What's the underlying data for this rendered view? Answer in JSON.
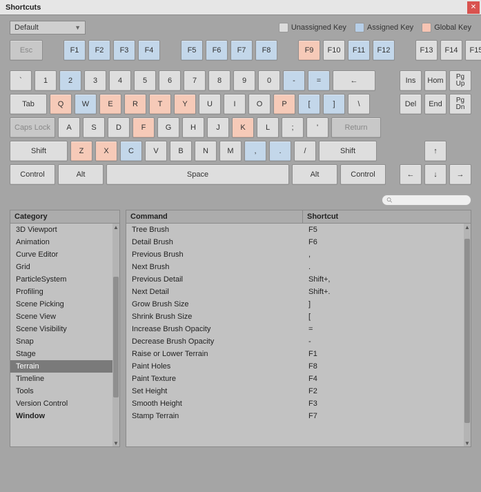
{
  "window": {
    "title": "Shortcuts"
  },
  "profile": {
    "selected": "Default"
  },
  "legend": {
    "unassigned": {
      "label": "Unassigned Key",
      "color": "#dcdcdc"
    },
    "assigned": {
      "label": "Assigned Key",
      "color": "#b7cfe8"
    },
    "global": {
      "label": "Global Key",
      "color": "#f7c4b3"
    }
  },
  "colors": {
    "bg": "#a5a5a5",
    "key_default": "#dedede",
    "key_assigned": "#c3d7ea",
    "key_global": "#f6cab8",
    "key_inactive": "#c8c8c8",
    "panel": "#c2c2c2",
    "header": "#acacac",
    "selected_row": "#7a7a7a"
  },
  "keyboard": {
    "row0": {
      "esc": {
        "label": "Esc",
        "state": "inactive"
      },
      "f_left": [
        {
          "label": "F1",
          "state": "assigned"
        },
        {
          "label": "F2",
          "state": "assigned"
        },
        {
          "label": "F3",
          "state": "assigned"
        },
        {
          "label": "F4",
          "state": "assigned"
        }
      ],
      "f_mid": [
        {
          "label": "F5",
          "state": "assigned"
        },
        {
          "label": "F6",
          "state": "assigned"
        },
        {
          "label": "F7",
          "state": "assigned"
        },
        {
          "label": "F8",
          "state": "assigned"
        }
      ],
      "f_right": [
        {
          "label": "F9",
          "state": "global"
        },
        {
          "label": "F10",
          "state": "default"
        },
        {
          "label": "F11",
          "state": "assigned"
        },
        {
          "label": "F12",
          "state": "assigned"
        }
      ],
      "f_far": [
        {
          "label": "F13",
          "state": "default"
        },
        {
          "label": "F14",
          "state": "default"
        },
        {
          "label": "F15",
          "state": "default"
        }
      ]
    },
    "row1": {
      "keys": [
        {
          "label": "`",
          "state": "default"
        },
        {
          "label": "1",
          "state": "default"
        },
        {
          "label": "2",
          "state": "assigned"
        },
        {
          "label": "3",
          "state": "default"
        },
        {
          "label": "4",
          "state": "default"
        },
        {
          "label": "5",
          "state": "default"
        },
        {
          "label": "6",
          "state": "default"
        },
        {
          "label": "7",
          "state": "default"
        },
        {
          "label": "8",
          "state": "default"
        },
        {
          "label": "9",
          "state": "default"
        },
        {
          "label": "0",
          "state": "default"
        },
        {
          "label": "-",
          "state": "assigned"
        },
        {
          "label": "=",
          "state": "assigned"
        }
      ],
      "back": {
        "label": "←",
        "state": "default"
      },
      "nav": [
        {
          "label": "Ins",
          "state": "default"
        },
        {
          "label": "Hom",
          "state": "default"
        },
        {
          "label_top": "Pg",
          "label_bot": "Up",
          "state": "default"
        }
      ]
    },
    "row2": {
      "tab": {
        "label": "Tab",
        "state": "default"
      },
      "keys": [
        {
          "label": "Q",
          "state": "global"
        },
        {
          "label": "W",
          "state": "assigned"
        },
        {
          "label": "E",
          "state": "global"
        },
        {
          "label": "R",
          "state": "global"
        },
        {
          "label": "T",
          "state": "global"
        },
        {
          "label": "Y",
          "state": "global"
        },
        {
          "label": "U",
          "state": "default"
        },
        {
          "label": "I",
          "state": "default"
        },
        {
          "label": "O",
          "state": "default"
        },
        {
          "label": "P",
          "state": "global"
        },
        {
          "label": "[",
          "state": "assigned"
        },
        {
          "label": "]",
          "state": "assigned"
        },
        {
          "label": "\\",
          "state": "default"
        }
      ],
      "nav": [
        {
          "label": "Del",
          "state": "default"
        },
        {
          "label": "End",
          "state": "default"
        },
        {
          "label_top": "Pg",
          "label_bot": "Dn",
          "state": "default"
        }
      ]
    },
    "row3": {
      "caps": {
        "label": "Caps Lock",
        "state": "inactive"
      },
      "keys": [
        {
          "label": "A",
          "state": "default"
        },
        {
          "label": "S",
          "state": "default"
        },
        {
          "label": "D",
          "state": "default"
        },
        {
          "label": "F",
          "state": "global"
        },
        {
          "label": "G",
          "state": "default"
        },
        {
          "label": "H",
          "state": "default"
        },
        {
          "label": "J",
          "state": "default"
        },
        {
          "label": "K",
          "state": "global"
        },
        {
          "label": "L",
          "state": "default"
        },
        {
          "label": ";",
          "state": "default"
        },
        {
          "label": "'",
          "state": "default"
        }
      ],
      "ret": {
        "label": "Return",
        "state": "inactive"
      }
    },
    "row4": {
      "shiftL": {
        "label": "Shift",
        "state": "default"
      },
      "keys": [
        {
          "label": "Z",
          "state": "global"
        },
        {
          "label": "X",
          "state": "global"
        },
        {
          "label": "C",
          "state": "assigned"
        },
        {
          "label": "V",
          "state": "default"
        },
        {
          "label": "B",
          "state": "default"
        },
        {
          "label": "N",
          "state": "default"
        },
        {
          "label": "M",
          "state": "default"
        },
        {
          "label": ",",
          "state": "assigned"
        },
        {
          "label": ".",
          "state": "assigned"
        },
        {
          "label": "/",
          "state": "default"
        }
      ],
      "shiftR": {
        "label": "Shift",
        "state": "default"
      },
      "up": {
        "label": "↑",
        "state": "default"
      }
    },
    "row5": {
      "ctrlL": {
        "label": "Control",
        "state": "default"
      },
      "altL": {
        "label": "Alt",
        "state": "default"
      },
      "space": {
        "label": "Space",
        "state": "default"
      },
      "altR": {
        "label": "Alt",
        "state": "default"
      },
      "ctrlR": {
        "label": "Control",
        "state": "default"
      },
      "arrows": [
        {
          "label": "←",
          "state": "default"
        },
        {
          "label": "↓",
          "state": "default"
        },
        {
          "label": "→",
          "state": "default"
        }
      ]
    }
  },
  "search": {
    "placeholder": ""
  },
  "category": {
    "header": "Category",
    "items": [
      {
        "label": "3D Viewport"
      },
      {
        "label": "Animation"
      },
      {
        "label": "Curve Editor"
      },
      {
        "label": "Grid"
      },
      {
        "label": "ParticleSystem"
      },
      {
        "label": "Profiling"
      },
      {
        "label": "Scene Picking"
      },
      {
        "label": "Scene View"
      },
      {
        "label": "Scene Visibility"
      },
      {
        "label": "Snap"
      },
      {
        "label": "Stage"
      },
      {
        "label": "Terrain",
        "selected": true
      },
      {
        "label": "Timeline"
      },
      {
        "label": "Tools"
      },
      {
        "label": "Version Control"
      },
      {
        "label": "Window",
        "bold": true
      }
    ],
    "scroll": {
      "thumb_top_pct": 22,
      "thumb_height_pct": 58
    }
  },
  "commands": {
    "header_cmd": "Command",
    "header_short": "Shortcut",
    "rows": [
      {
        "cmd": "Tree Brush",
        "short": "F5"
      },
      {
        "cmd": "Detail Brush",
        "short": "F6"
      },
      {
        "cmd": "Previous Brush",
        "short": ","
      },
      {
        "cmd": "Next Brush",
        "short": "."
      },
      {
        "cmd": "Previous Detail",
        "short": "Shift+,"
      },
      {
        "cmd": "Next Detail",
        "short": "Shift+."
      },
      {
        "cmd": "Grow Brush Size",
        "short": "]"
      },
      {
        "cmd": "Shrink Brush Size",
        "short": "["
      },
      {
        "cmd": "Increase Brush Opacity",
        "short": "="
      },
      {
        "cmd": "Decrease Brush Opacity",
        "short": "-"
      },
      {
        "cmd": "Raise or Lower Terrain",
        "short": "F1"
      },
      {
        "cmd": "Paint Holes",
        "short": "F8"
      },
      {
        "cmd": "Paint Texture",
        "short": "F4"
      },
      {
        "cmd": "Set Height",
        "short": "F2"
      },
      {
        "cmd": "Smooth Height",
        "short": "F3"
      },
      {
        "cmd": "Stamp Terrain",
        "short": "F7"
      }
    ],
    "scroll": {
      "thumb_top_pct": 4,
      "thumb_height_pct": 88
    }
  }
}
